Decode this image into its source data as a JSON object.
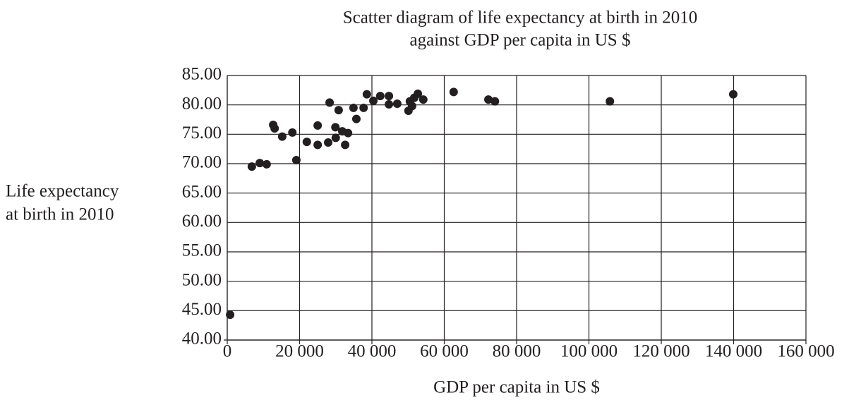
{
  "chart_data": {
    "type": "scatter",
    "title": [
      "Scatter diagram of life expectancy at birth in 2010",
      "against GDP per capita in US $"
    ],
    "x_label": "GDP per capita in US $",
    "y_label": [
      "Life expectancy",
      "at birth in 2010"
    ],
    "color": "#231f20",
    "grid": true,
    "xlim": [
      0,
      160000
    ],
    "ylim": [
      40,
      85
    ],
    "xticks": [
      0,
      {
        "value": 20000,
        "label": "20 000"
      },
      {
        "value": 40000,
        "label": "40 000"
      },
      {
        "value": 60000,
        "label": "60 000"
      },
      {
        "value": 80000,
        "label": "80 000"
      },
      {
        "value": 100000,
        "label": "100 000"
      },
      {
        "value": 120000,
        "label": "120 000"
      },
      {
        "value": 140000,
        "label": "140 000"
      },
      {
        "value": 160000,
        "label": "160 000"
      }
    ],
    "yticks": [
      {
        "value": 40,
        "label": "40.00"
      },
      {
        "value": 45,
        "label": "45.00"
      },
      {
        "value": 50,
        "label": "50.00"
      },
      {
        "value": 55,
        "label": "55.00"
      },
      {
        "value": 60,
        "label": "60.00"
      },
      {
        "value": 65,
        "label": "65.00"
      },
      {
        "value": 70,
        "label": "70.00"
      },
      {
        "value": 75,
        "label": "75.00"
      },
      {
        "value": 80,
        "label": "80.00"
      },
      {
        "value": 85,
        "label": "85.00"
      }
    ],
    "x": [
      800,
      6800,
      9000,
      10900,
      12700,
      13100,
      15200,
      18000,
      19100,
      22000,
      25000,
      25000,
      27900,
      28300,
      29900,
      30000,
      30800,
      31800,
      32600,
      33400,
      34900,
      35700,
      37700,
      38600,
      40400,
      42300,
      44700,
      44700,
      47000,
      50100,
      50500,
      51100,
      51700,
      52700,
      54200,
      62600,
      72200,
      74000,
      105800,
      139900
    ],
    "values": [
      44.3,
      69.5,
      70.1,
      69.9,
      76.6,
      76.0,
      74.6,
      75.3,
      70.6,
      73.7,
      73.2,
      76.5,
      73.6,
      80.4,
      76.2,
      74.4,
      79.1,
      75.5,
      73.2,
      75.2,
      79.5,
      77.6,
      79.5,
      81.8,
      80.7,
      81.5,
      81.5,
      80.1,
      80.2,
      79.0,
      80.6,
      79.8,
      81.2,
      81.9,
      80.9,
      82.2,
      80.9,
      80.6,
      80.6,
      81.8
    ]
  }
}
